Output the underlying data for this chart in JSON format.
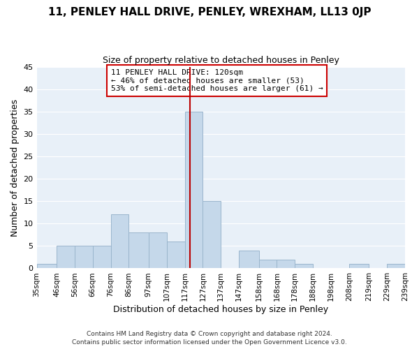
{
  "title": "11, PENLEY HALL DRIVE, PENLEY, WREXHAM, LL13 0JP",
  "subtitle": "Size of property relative to detached houses in Penley",
  "xlabel": "Distribution of detached houses by size in Penley",
  "ylabel": "Number of detached properties",
  "bar_left_edges": [
    35,
    46,
    56,
    66,
    76,
    86,
    97,
    107,
    117,
    127,
    137,
    147,
    158,
    168,
    178,
    188,
    198,
    208,
    219,
    229
  ],
  "bar_heights": [
    1,
    5,
    5,
    5,
    12,
    8,
    8,
    6,
    35,
    15,
    0,
    4,
    2,
    2,
    1,
    0,
    0,
    1,
    0,
    1
  ],
  "bar_widths": [
    11,
    10,
    10,
    10,
    10,
    11,
    10,
    10,
    10,
    10,
    10,
    11,
    10,
    10,
    10,
    10,
    10,
    11,
    10,
    10
  ],
  "tick_labels": [
    "35sqm",
    "46sqm",
    "56sqm",
    "66sqm",
    "76sqm",
    "86sqm",
    "97sqm",
    "107sqm",
    "117sqm",
    "127sqm",
    "137sqm",
    "147sqm",
    "158sqm",
    "168sqm",
    "178sqm",
    "188sqm",
    "198sqm",
    "208sqm",
    "219sqm",
    "229sqm",
    "239sqm"
  ],
  "tick_positions": [
    35,
    46,
    56,
    66,
    76,
    86,
    97,
    107,
    117,
    127,
    137,
    147,
    158,
    168,
    178,
    188,
    198,
    208,
    219,
    229,
    239
  ],
  "bar_color": "#c5d8ea",
  "bar_edge_color": "#9ab5cc",
  "property_line_x": 120,
  "annotation_line1": "11 PENLEY HALL DRIVE: 120sqm",
  "annotation_line2": "← 46% of detached houses are smaller (53)",
  "annotation_line3": "53% of semi-detached houses are larger (61) →",
  "vline_color": "#bb0000",
  "ylim": [
    0,
    45
  ],
  "yticks": [
    0,
    5,
    10,
    15,
    20,
    25,
    30,
    35,
    40,
    45
  ],
  "xlim_left": 35,
  "xlim_right": 239,
  "bg_color": "#e8f0f8",
  "footer_line1": "Contains HM Land Registry data © Crown copyright and database right 2024.",
  "footer_line2": "Contains public sector information licensed under the Open Government Licence v3.0.",
  "title_fontsize": 11,
  "subtitle_fontsize": 9,
  "ylabel_fontsize": 9,
  "xlabel_fontsize": 9,
  "tick_fontsize": 7.5,
  "annotation_fontsize": 8,
  "footer_fontsize": 6.5
}
